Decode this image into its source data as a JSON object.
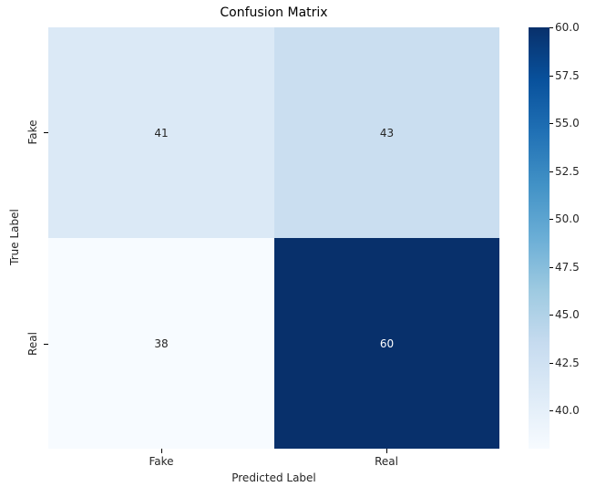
{
  "chart_data": {
    "type": "heatmap",
    "title": "Confusion Matrix",
    "xlabel": "Predicted Label",
    "ylabel": "True Label",
    "x_categories": [
      "Fake",
      "Real"
    ],
    "y_categories": [
      "Fake",
      "Real"
    ],
    "values": [
      [
        41,
        43
      ],
      [
        38,
        60
      ]
    ],
    "colormap": "Blues",
    "colorbar": {
      "range": [
        38,
        60
      ],
      "ticks": [
        "40.0",
        "42.5",
        "45.0",
        "47.5",
        "50.0",
        "52.5",
        "55.0",
        "57.5",
        "60.0"
      ]
    },
    "cell_colors": [
      [
        "#dbe9f6",
        "#cadef0"
      ],
      [
        "#f7fbff",
        "#08306b"
      ]
    ],
    "annotation_colors": [
      [
        "#262626",
        "#262626"
      ],
      [
        "#262626",
        "#ffffff"
      ]
    ]
  }
}
